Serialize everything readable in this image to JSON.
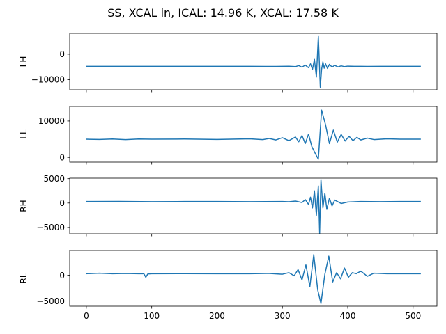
{
  "figure": {
    "title": "SS, XCAL in, ICAL: 14.96 K, XCAL: 17.58 K"
  },
  "colors": {
    "series": "#1f77b4",
    "axes": "#000000",
    "background": "#ffffff"
  },
  "chart_data": [
    {
      "type": "line",
      "ylabel": "LH",
      "xlim": [
        -25.5,
        536.5
      ],
      "ylim": [
        -14000,
        8200
      ],
      "yticks": [
        -10000,
        0
      ],
      "ytick_labels": [
        "−10000",
        "0"
      ],
      "xticks": [
        0,
        100,
        200,
        300,
        400,
        500
      ],
      "show_xtick_labels": false,
      "grid": false,
      "x": [
        0,
        50,
        100,
        150,
        200,
        250,
        290,
        310,
        320,
        325,
        330,
        335,
        340,
        343,
        346,
        349,
        352,
        355,
        358,
        360,
        362,
        364,
        366,
        369,
        372,
        376,
        380,
        385,
        390,
        395,
        400,
        410,
        420,
        430,
        450,
        480,
        511
      ],
      "series": [
        {
          "values": [
            -4800,
            -4800,
            -4780,
            -4800,
            -4790,
            -4800,
            -4810,
            -4750,
            -4900,
            -4500,
            -5100,
            -4300,
            -5300,
            -3800,
            -6000,
            -2000,
            -9000,
            7000,
            -13000,
            -6000,
            -3000,
            -5500,
            -3800,
            -5600,
            -4000,
            -5100,
            -4400,
            -5000,
            -4600,
            -4900,
            -4700,
            -4800,
            -4780,
            -4820,
            -4800,
            -4800,
            -4800
          ]
        }
      ]
    },
    {
      "type": "line",
      "ylabel": "LL",
      "xlim": [
        -25.5,
        536.5
      ],
      "ylim": [
        -1300,
        14000
      ],
      "yticks": [
        0,
        10000
      ],
      "ytick_labels": [
        "0",
        "10000"
      ],
      "xticks": [
        0,
        100,
        200,
        300,
        400,
        500
      ],
      "show_xtick_labels": false,
      "grid": false,
      "x": [
        0,
        20,
        40,
        60,
        80,
        100,
        150,
        200,
        250,
        270,
        280,
        290,
        300,
        310,
        320,
        325,
        330,
        335,
        340,
        345,
        350,
        355,
        360,
        366,
        372,
        378,
        384,
        390,
        396,
        402,
        408,
        414,
        420,
        430,
        440,
        460,
        480,
        511
      ],
      "series": [
        {
          "values": [
            5000,
            4950,
            5050,
            4900,
            5050,
            5000,
            5050,
            4950,
            5100,
            4900,
            5200,
            4800,
            5400,
            4600,
            5600,
            4300,
            6000,
            3800,
            6400,
            3000,
            1200,
            -500,
            13000,
            9000,
            3800,
            7500,
            4200,
            6300,
            4500,
            5800,
            4600,
            5500,
            4800,
            5300,
            4900,
            5100,
            5000,
            5000
          ]
        }
      ]
    },
    {
      "type": "line",
      "ylabel": "RH",
      "xlim": [
        -25.5,
        536.5
      ],
      "ylim": [
        -6300,
        5100
      ],
      "yticks": [
        -5000,
        0,
        5000
      ],
      "ytick_labels": [
        "−5000",
        "0",
        "5000"
      ],
      "xticks": [
        0,
        100,
        200,
        300,
        400,
        500
      ],
      "show_xtick_labels": false,
      "grid": false,
      "x": [
        0,
        50,
        100,
        150,
        200,
        250,
        300,
        310,
        320,
        330,
        335,
        340,
        343,
        346,
        349,
        352,
        355,
        357,
        359,
        362,
        365,
        368,
        372,
        376,
        380,
        390,
        400,
        420,
        450,
        480,
        511
      ],
      "series": [
        {
          "values": [
            300,
            320,
            280,
            300,
            300,
            280,
            300,
            250,
            400,
            100,
            700,
            -300,
            1200,
            -1000,
            2500,
            -2500,
            3500,
            -6200,
            4800,
            -1000,
            2000,
            -1300,
            1000,
            -600,
            600,
            -100,
            200,
            300,
            280,
            300,
            300
          ]
        }
      ]
    },
    {
      "type": "line",
      "ylabel": "RL",
      "xlim": [
        -25.5,
        536.5
      ],
      "ylim": [
        -6000,
        4800
      ],
      "yticks": [
        -5000,
        0
      ],
      "ytick_labels": [
        "−5000",
        "0"
      ],
      "xticks": [
        0,
        100,
        200,
        300,
        400,
        500
      ],
      "show_xtick_labels": true,
      "xtick_labels": [
        "0",
        "100",
        "200",
        "300",
        "400",
        "500"
      ],
      "grid": false,
      "x": [
        0,
        20,
        40,
        60,
        80,
        88,
        91,
        94,
        100,
        150,
        200,
        250,
        280,
        300,
        310,
        318,
        324,
        330,
        336,
        342,
        348,
        354,
        359,
        365,
        371,
        377,
        383,
        389,
        395,
        401,
        407,
        413,
        420,
        430,
        440,
        460,
        480,
        511
      ],
      "series": [
        {
          "values": [
            300,
            400,
            300,
            350,
            300,
            300,
            -400,
            250,
            300,
            320,
            300,
            300,
            350,
            200,
            500,
            -100,
            1100,
            -900,
            2000,
            -2200,
            4000,
            -2800,
            -5500,
            200,
            3700,
            -1300,
            500,
            -700,
            1400,
            -400,
            500,
            300,
            800,
            -200,
            400,
            300,
            300,
            300
          ]
        }
      ]
    }
  ]
}
